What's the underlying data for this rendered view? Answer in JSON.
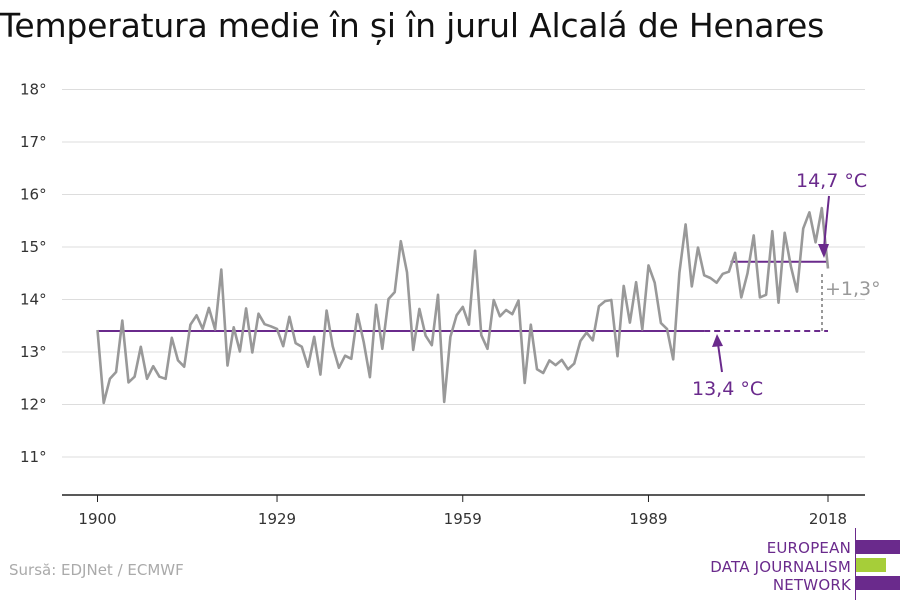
{
  "title": "Temperatura medie în și în jurul Alcalá de Henares",
  "source": "Sursă: EDJNet / ECMWF",
  "logo": {
    "line1": "EUROPEAN",
    "line2": "DATA JOURNALISM",
    "line3": "NETWORK",
    "colors": {
      "purple": "#6a2a8c",
      "green": "#a6ce39"
    }
  },
  "chart_data": {
    "type": "line",
    "x_ticks": [
      "1900",
      "1929",
      "1959",
      "1989",
      "2018"
    ],
    "y_ticks": [
      "11°",
      "12°",
      "13°",
      "14°",
      "15°",
      "16°",
      "17°",
      "18°"
    ],
    "xlim": [
      1900,
      2018
    ],
    "ylim": [
      10.4,
      18
    ],
    "grid": true,
    "series": [
      {
        "color": "#999999",
        "x": [
          1900,
          1901,
          1902,
          1903,
          1904,
          1905,
          1906,
          1907,
          1908,
          1909,
          1910,
          1911,
          1912,
          1913,
          1914,
          1915,
          1916,
          1917,
          1918,
          1919,
          1920,
          1921,
          1922,
          1923,
          1924,
          1925,
          1926,
          1927,
          1928,
          1929,
          1930,
          1931,
          1932,
          1933,
          1934,
          1935,
          1936,
          1937,
          1938,
          1939,
          1940,
          1941,
          1942,
          1943,
          1944,
          1945,
          1946,
          1947,
          1948,
          1949,
          1950,
          1951,
          1952,
          1953,
          1954,
          1955,
          1956,
          1957,
          1958,
          1959,
          1960,
          1961,
          1962,
          1963,
          1964,
          1965,
          1966,
          1967,
          1968,
          1969,
          1970,
          1971,
          1972,
          1973,
          1974,
          1975,
          1976,
          1977,
          1978,
          1979,
          1980,
          1981,
          1982,
          1983,
          1984,
          1985,
          1986,
          1987,
          1988,
          1989,
          1990,
          1991,
          1992,
          1993,
          1994,
          1995,
          1996,
          1997,
          1998,
          1999,
          2000,
          2001,
          2002,
          2003,
          2004,
          2005,
          2006,
          2007,
          2008,
          2009,
          2010,
          2011,
          2012,
          2013,
          2014,
          2015,
          2016,
          2017,
          2018
        ],
        "y": [
          13.42,
          12.03,
          12.49,
          12.62,
          13.6,
          12.42,
          12.53,
          13.1,
          12.49,
          12.73,
          12.53,
          12.49,
          13.27,
          12.84,
          12.72,
          13.52,
          13.7,
          13.44,
          13.84,
          13.43,
          14.57,
          12.74,
          13.47,
          13.01,
          13.83,
          12.99,
          13.73,
          13.53,
          13.49,
          13.44,
          13.11,
          13.67,
          13.17,
          13.1,
          12.72,
          13.29,
          12.57,
          13.79,
          13.11,
          12.7,
          12.93,
          12.87,
          13.72,
          13.19,
          12.52,
          13.9,
          13.06,
          14.01,
          14.14,
          15.11,
          14.52,
          13.04,
          13.82,
          13.31,
          13.13,
          14.09,
          12.05,
          13.29,
          13.7,
          13.86,
          13.52,
          14.93,
          13.32,
          13.06,
          13.99,
          13.68,
          13.8,
          13.72,
          13.98,
          12.41,
          13.52,
          12.67,
          12.6,
          12.84,
          12.75,
          12.85,
          12.67,
          12.78,
          13.21,
          13.37,
          13.22,
          13.87,
          13.97,
          13.99,
          12.92,
          14.26,
          13.56,
          14.33,
          13.43,
          14.65,
          14.32,
          13.55,
          13.44,
          12.86,
          14.51,
          15.43,
          14.25,
          14.99,
          14.46,
          14.41,
          14.32,
          14.49,
          14.53,
          14.89,
          14.04,
          14.5,
          15.22,
          14.04,
          14.09,
          15.3,
          13.94,
          15.27,
          14.63,
          14.15,
          15.35,
          15.66,
          15.09,
          15.74,
          14.59
        ]
      }
    ],
    "reference_lines": [
      {
        "label": "13,4 °C",
        "value": 13.4,
        "from": 1900,
        "to": 2018,
        "solid_to": 1998,
        "color": "#6a2a8c"
      },
      {
        "label": "14,7 °C",
        "value": 14.72,
        "from": 2000,
        "to": 2018,
        "color": "#6a2a8c"
      }
    ],
    "difference_label": "+1,3°"
  }
}
